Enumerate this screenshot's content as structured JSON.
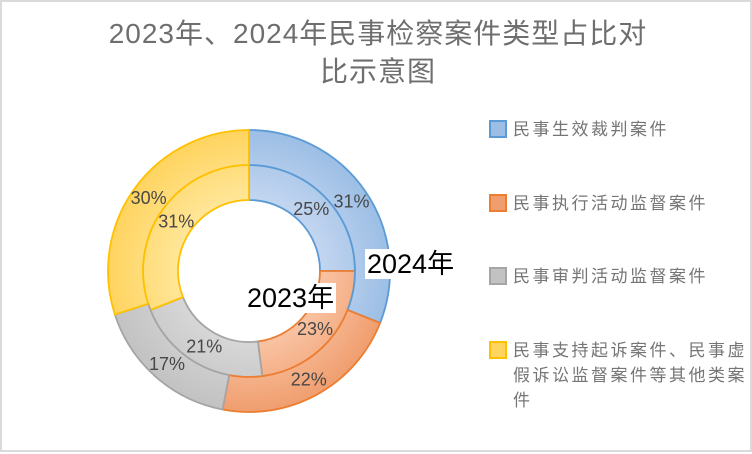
{
  "frame": {
    "background": "#ffffff",
    "border_color": "#dadada"
  },
  "chart_data": {
    "type": "pie",
    "subtype": "doughnut-double-ring",
    "title": "2023年、2024年民事检察案件类型占比对比示意图",
    "title_lines": [
      "2023年、2024年民事检察案件类型占比对",
      "比示意图"
    ],
    "categories": [
      "民事生效裁判案件",
      "民事执行活动监督案件",
      "民事审判活动监督案件",
      "民事支持起诉案件、民事虚假诉讼监督案件等其他类案件"
    ],
    "series": [
      {
        "name": "2023年",
        "ring": "inner",
        "values": [
          25,
          23,
          21,
          31
        ],
        "labels": [
          "25%",
          "23%",
          "21%",
          "31%"
        ]
      },
      {
        "name": "2024年",
        "ring": "outer",
        "values": [
          31,
          22,
          17,
          30
        ],
        "labels": [
          "31%",
          "22%",
          "17%",
          "30%"
        ]
      }
    ],
    "unit": "%",
    "start_angle_deg": 0,
    "direction": "clockwise",
    "legend_position": "right",
    "colors": {
      "fills_light": [
        "#C3D6F0",
        "#F9C4A4",
        "#D7D7D7",
        "#FFE699"
      ],
      "fills": [
        "#9CBEE5",
        "#F09E6E",
        "#C2C2C2",
        "#FFD45F"
      ],
      "borders": [
        "#5B9BD5",
        "#ED7D31",
        "#A5A5A5",
        "#FFC000"
      ],
      "data_label_color": "#474747",
      "series_label_color": "#000000",
      "title_color": "#6E6E6E",
      "legend_text_color": "#757575"
    }
  }
}
